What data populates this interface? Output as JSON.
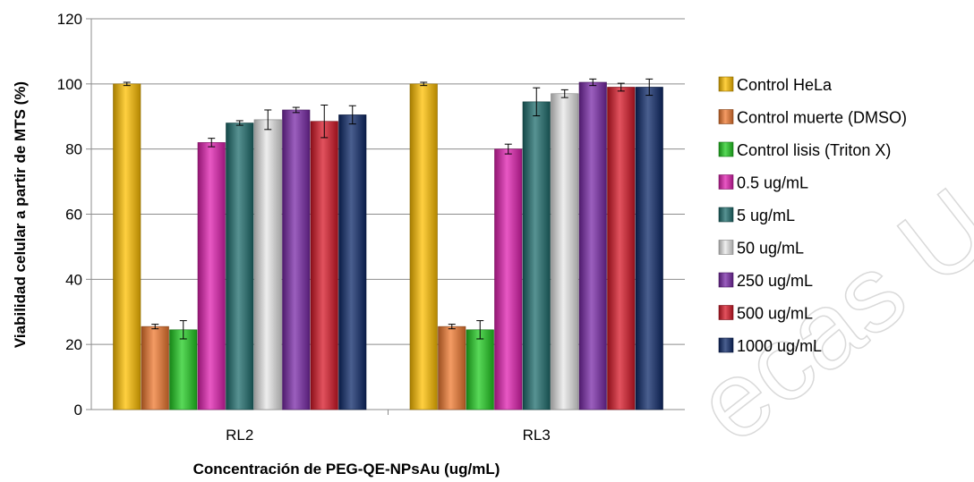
{
  "watermark_text": "ecas U",
  "chart_data": {
    "type": "bar",
    "title": "",
    "xlabel": "Concentración de PEG-QE-NPsAu (ug/mL)",
    "ylabel": "Viabilidad celular a partir de MTS (%)",
    "ylim": [
      0,
      120
    ],
    "yticks": [
      0,
      20,
      40,
      60,
      80,
      100,
      120
    ],
    "grid": true,
    "legend_position": "right",
    "categories": [
      "RL2",
      "RL3"
    ],
    "series": [
      {
        "name": "Control HeLa",
        "color": "#FFC000",
        "values": [
          100,
          100
        ],
        "errors": [
          0.5,
          0.5
        ]
      },
      {
        "name": "Control muerte (DMSO)",
        "color": "#F07A30",
        "values": [
          25.5,
          25.5
        ],
        "errors": [
          0.7,
          0.7
        ]
      },
      {
        "name": "Control lisis (Triton X)",
        "color": "#22CC22",
        "values": [
          24.5,
          24.5
        ],
        "errors": [
          2.8,
          2.8
        ]
      },
      {
        "name": "0.5 ug/mL",
        "color": "#E020B0",
        "values": [
          82,
          80
        ],
        "errors": [
          1.3,
          1.5
        ]
      },
      {
        "name": "5 ug/mL",
        "color": "#1F6E6E",
        "values": [
          88,
          94.5
        ],
        "errors": [
          0.7,
          4.3
        ]
      },
      {
        "name": "50 ug/mL",
        "color": "#E8E8E8",
        "values": [
          89,
          97
        ],
        "errors": [
          3,
          1.2
        ]
      },
      {
        "name": "250 ug/mL",
        "color": "#7A2AA8",
        "values": [
          92,
          100.5
        ],
        "errors": [
          0.8,
          1
        ]
      },
      {
        "name": "500 ug/mL",
        "color": "#D81828",
        "values": [
          88.5,
          99
        ],
        "errors": [
          5,
          1.2
        ]
      },
      {
        "name": "1000 ug/mL",
        "color": "#0E2A6A",
        "values": [
          90.5,
          99
        ],
        "errors": [
          2.8,
          2.5
        ]
      }
    ]
  }
}
